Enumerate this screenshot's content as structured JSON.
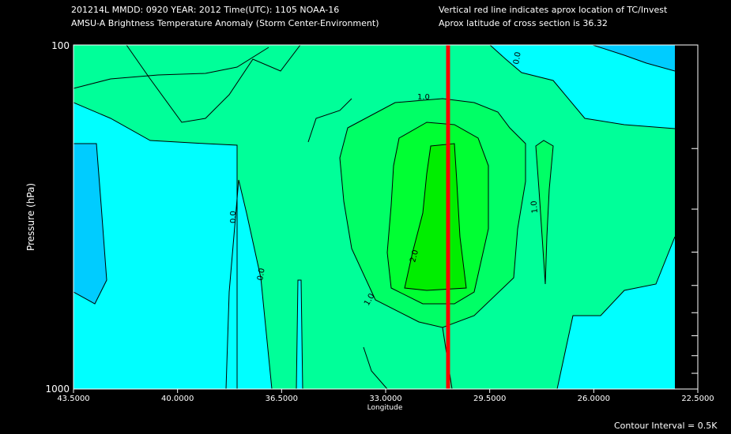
{
  "header": {
    "line1_left": "201214L  MMDD: 0920 YEAR: 2012 Time(UTC): 1105 NOAA-16",
    "line2_left": "AMSU-A Brightness Temperature Anomaly (Storm Center-Environment)",
    "line1_right": "Vertical red line indicates aprox location of TC/Invest",
    "line2_right": "Aprox latitude of cross section is 36.32"
  },
  "footer": {
    "contour_interval": "Contour Interval = 0.5K"
  },
  "colors": {
    "background": "#000000",
    "level_0_to_0.5": "#00ffff",
    "level_0.5_to_1.0": "#00ff99",
    "level_1.0_to_1.5": "#00ff66",
    "level_1.5_to_2.0": "#00ff33",
    "level_above_2.0": "#00ee00",
    "negative": "#00ccff",
    "tc_line": "#ff0000"
  },
  "chart_data": {
    "type": "contour",
    "xlabel": "Longitude",
    "ylabel": "Pressure (hPa)",
    "x_range": [
      43.5,
      22.5
    ],
    "y_range": [
      1000,
      100
    ],
    "y_scale": "log",
    "x_ticks": [
      "43.5000",
      "40.0000",
      "36.5000",
      "33.0000",
      "29.5000",
      "26.0000",
      "22.5000"
    ],
    "y_ticks": [
      "100",
      "1000"
    ],
    "contour_interval": 0.5,
    "contour_labels": [
      "0.0",
      "1.0",
      "2.0",
      "1.0",
      "0.0",
      "0.0",
      "1.0"
    ],
    "tc_longitude": 30.9,
    "max_anomaly": 2.0,
    "max_anomaly_location": {
      "longitude": 31.5,
      "pressure_range": [
        250,
        600
      ]
    }
  }
}
